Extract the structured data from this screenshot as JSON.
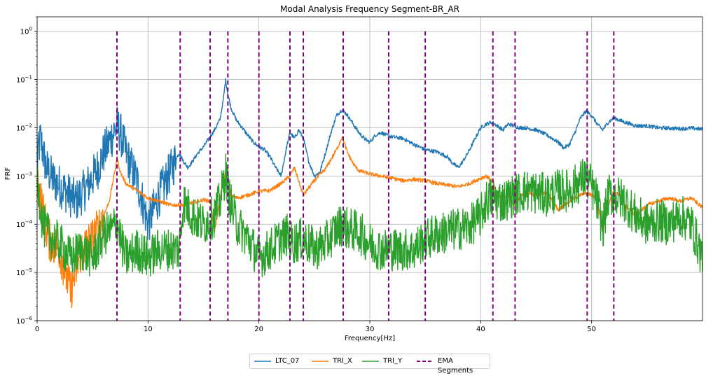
{
  "chart_data": {
    "type": "line",
    "title": "Modal Analysis Frequency Segment-BR_AR",
    "xlabel": "Frequency[Hz]",
    "ylabel": "FRF",
    "xlim": [
      0,
      60
    ],
    "ylim": [
      1e-06,
      2
    ],
    "yscale": "log",
    "grid": true,
    "legend_position": "bottom-center",
    "x_ticks": [
      "0",
      "10",
      "20",
      "30",
      "40",
      "50"
    ],
    "x_tick_values": [
      0,
      10,
      20,
      30,
      40,
      50
    ],
    "y_ticks": [
      {
        "base": "10",
        "exp": "−6",
        "value": 1e-06
      },
      {
        "base": "10",
        "exp": "−5",
        "value": 1e-05
      },
      {
        "base": "10",
        "exp": "−4",
        "value": 0.0001
      },
      {
        "base": "10",
        "exp": "−3",
        "value": 0.001
      },
      {
        "base": "10",
        "exp": "−2",
        "value": 0.01
      },
      {
        "base": "10",
        "exp": "−1",
        "value": 0.1
      },
      {
        "base": "10",
        "exp": "0",
        "value": 1
      }
    ],
    "series": [
      {
        "name": "LTC_07",
        "color": "#1f77b4",
        "x": [
          0.0,
          0.3,
          0.8,
          1.5,
          2.5,
          3.5,
          4.5,
          5.5,
          6.0,
          6.5,
          7.0,
          7.2,
          7.5,
          8.0,
          8.5,
          9.0,
          9.5,
          10.0,
          10.5,
          11.0,
          11.5,
          12.0,
          12.5,
          12.8,
          13.2,
          13.6,
          14.0,
          14.5,
          15.0,
          15.5,
          16.0,
          16.5,
          16.8,
          17.0,
          17.2,
          17.5,
          18.0,
          18.5,
          19.0,
          19.5,
          20.0,
          20.5,
          21.0,
          21.5,
          22.0,
          22.5,
          22.8,
          23.2,
          23.6,
          24.0,
          24.5,
          25.0,
          25.5,
          26.0,
          26.5,
          27.0,
          27.5,
          28.0,
          28.5,
          29.0,
          29.5,
          30.0,
          30.5,
          31.0,
          31.5,
          32.0,
          33.0,
          34.0,
          35.0,
          36.0,
          37.0,
          37.5,
          38.0,
          38.5,
          39.0,
          39.5,
          40.0,
          40.5,
          41.0,
          41.5,
          42.0,
          42.5,
          43.0,
          43.5,
          44.0,
          45.0,
          46.0,
          47.0,
          47.5,
          48.0,
          48.5,
          49.0,
          49.5,
          50.0,
          50.5,
          51.0,
          51.5,
          52.0,
          53.0,
          54.0,
          55.0,
          56.0,
          57.0,
          58.0,
          59.0,
          60.0
        ],
        "values": [
          0.002,
          0.006,
          0.0015,
          0.0008,
          0.0005,
          0.0003,
          0.0006,
          0.0015,
          0.003,
          0.005,
          0.009,
          0.011,
          0.008,
          0.003,
          0.0015,
          0.0008,
          0.0003,
          0.0001,
          0.0002,
          0.0004,
          0.0007,
          0.0012,
          0.0022,
          0.003,
          0.002,
          0.0015,
          0.002,
          0.003,
          0.004,
          0.006,
          0.009,
          0.015,
          0.04,
          0.1,
          0.05,
          0.025,
          0.014,
          0.01,
          0.007,
          0.005,
          0.004,
          0.0035,
          0.0025,
          0.0015,
          0.001,
          0.004,
          0.008,
          0.006,
          0.009,
          0.006,
          0.002,
          0.001,
          0.0012,
          0.003,
          0.008,
          0.018,
          0.024,
          0.018,
          0.012,
          0.008,
          0.006,
          0.005,
          0.007,
          0.008,
          0.007,
          0.0065,
          0.006,
          0.0045,
          0.0035,
          0.0032,
          0.0025,
          0.0018,
          0.0015,
          0.0022,
          0.0035,
          0.006,
          0.01,
          0.012,
          0.013,
          0.011,
          0.009,
          0.012,
          0.011,
          0.01,
          0.01,
          0.009,
          0.007,
          0.005,
          0.0038,
          0.0045,
          0.008,
          0.016,
          0.022,
          0.018,
          0.012,
          0.009,
          0.013,
          0.016,
          0.013,
          0.011,
          0.011,
          0.01,
          0.0098,
          0.0096,
          0.0098,
          0.0093
        ],
        "noise_until": 12.5
      },
      {
        "name": "TRI_X",
        "color": "#ff7f0e",
        "x": [
          0.0,
          0.5,
          1.0,
          2.0,
          3.0,
          4.0,
          5.0,
          5.5,
          6.0,
          6.5,
          7.0,
          7.2,
          7.5,
          8.0,
          9.0,
          10.0,
          11.0,
          12.0,
          13.0,
          14.0,
          15.0,
          15.6,
          16.0,
          16.5,
          17.0,
          17.5,
          18.0,
          19.0,
          20.0,
          21.0,
          22.0,
          22.8,
          23.2,
          24.0,
          25.0,
          26.0,
          27.0,
          27.5,
          28.0,
          28.5,
          29.0,
          30.0,
          31.0,
          32.0,
          33.0,
          34.0,
          35.0,
          36.0,
          37.0,
          38.0,
          39.0,
          40.0,
          40.5,
          41.0,
          41.5,
          42.0,
          42.5,
          43.0,
          43.5,
          44.0,
          45.0,
          46.0,
          47.0,
          48.0,
          49.0,
          49.5,
          50.0,
          50.5,
          51.0,
          51.5,
          52.0,
          52.5,
          53.0,
          54.0,
          55.0,
          56.0,
          57.0,
          58.0,
          59.0,
          60.0
        ],
        "values": [
          0.0009,
          0.0002,
          5e-05,
          3e-05,
          4e-06,
          3e-05,
          5e-05,
          8e-05,
          0.00015,
          0.0003,
          0.0012,
          0.0024,
          0.0012,
          0.0007,
          0.0005,
          0.00035,
          0.0003,
          0.00025,
          0.00025,
          0.00028,
          0.00032,
          0.0003,
          7e-05,
          0.00035,
          0.0012,
          0.0004,
          0.00035,
          0.0004,
          0.00048,
          0.0005,
          0.0007,
          0.001,
          0.0015,
          0.0004,
          0.0008,
          0.0014,
          0.0035,
          0.0065,
          0.003,
          0.0018,
          0.0013,
          0.0011,
          0.001,
          0.0009,
          0.0008,
          0.00085,
          0.0008,
          0.0007,
          0.00065,
          0.0006,
          0.0007,
          0.0009,
          0.001,
          0.0008,
          0.0004,
          0.00035,
          0.0004,
          0.00025,
          0.00035,
          0.00045,
          0.0004,
          0.00045,
          0.0002,
          0.0003,
          0.0004,
          0.00045,
          0.0004,
          0.00035,
          7e-05,
          0.00025,
          0.0005,
          0.0004,
          0.00025,
          0.00015,
          0.00025,
          0.0003,
          0.00035,
          0.0003,
          0.00035,
          0.00022
        ],
        "noise_until": 6.0
      },
      {
        "name": "TRI_Y",
        "color": "#2ca02c",
        "x": [
          0.0,
          0.5,
          1.0,
          2.0,
          3.0,
          4.0,
          5.0,
          6.0,
          6.8,
          7.2,
          7.6,
          8.0,
          9.0,
          10.0,
          11.0,
          12.0,
          12.8,
          13.2,
          14.0,
          15.0,
          16.0,
          16.5,
          17.0,
          17.4,
          18.0,
          19.0,
          20.0,
          21.0,
          22.0,
          22.5,
          23.0,
          24.0,
          25.0,
          26.0,
          27.0,
          27.5,
          28.0,
          29.0,
          30.0,
          31.0,
          32.0,
          33.0,
          34.0,
          35.0,
          36.0,
          37.0,
          38.0,
          39.0,
          40.0,
          40.5,
          41.0,
          42.0,
          43.0,
          44.0,
          45.0,
          46.0,
          47.0,
          48.0,
          49.0,
          49.5,
          50.0,
          50.5,
          51.0,
          51.5,
          52.0,
          53.0,
          54.0,
          55.0,
          56.0,
          57.0,
          58.0,
          59.0,
          60.0
        ],
        "values": [
          0.0009,
          0.0001,
          6e-05,
          4e-05,
          2e-05,
          3e-05,
          2e-05,
          6e-05,
          8e-05,
          0.00012,
          4e-05,
          2e-05,
          3e-05,
          2e-05,
          3e-05,
          3e-05,
          3e-05,
          0.0003,
          0.00015,
          0.0001,
          0.00015,
          0.0003,
          0.0012,
          0.0003,
          0.0001,
          5e-05,
          2e-05,
          3e-05,
          5e-05,
          6e-05,
          4e-05,
          5e-05,
          3e-05,
          4e-05,
          8e-05,
          0.0001,
          8e-05,
          7e-05,
          4e-05,
          3e-05,
          3e-05,
          3e-05,
          3e-05,
          5e-05,
          6e-05,
          7e-05,
          8e-05,
          9e-05,
          0.00015,
          0.0003,
          0.00035,
          0.0003,
          0.0004,
          0.0005,
          0.00045,
          0.0004,
          0.0005,
          0.0005,
          0.0008,
          0.001,
          0.0006,
          0.0003,
          8e-05,
          0.0004,
          0.0004,
          0.0003,
          0.00015,
          0.0001,
          0.00012,
          0.0001,
          0.00015,
          0.0001,
          2e-05
        ],
        "noise_until": 60
      }
    ],
    "vlines": {
      "name": "EMA Segments",
      "color": "#800080",
      "x": [
        7.2,
        12.9,
        15.6,
        17.2,
        20.0,
        22.8,
        24.0,
        27.6,
        31.7,
        35.0,
        41.1,
        43.1,
        49.6,
        52.0
      ]
    }
  }
}
